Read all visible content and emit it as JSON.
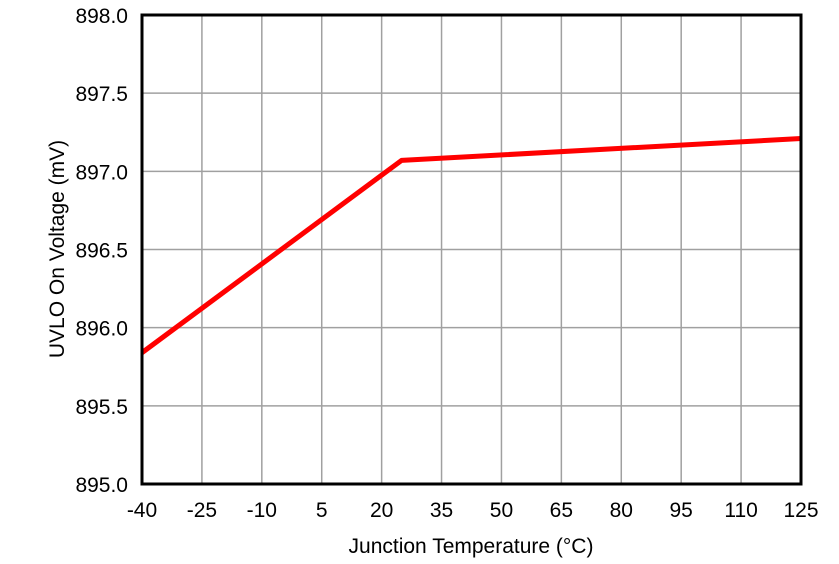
{
  "chart_data": {
    "type": "line",
    "title": "",
    "xlabel": "Junction Temperature (°C)",
    "ylabel": "UVLO On Voltage (mV)",
    "xlim": [
      -40,
      125
    ],
    "ylim": [
      895.0,
      898.0
    ],
    "x_ticks": [
      "-40",
      "-25",
      "-10",
      "5",
      "20",
      "35",
      "50",
      "65",
      "80",
      "95",
      "110",
      "125"
    ],
    "y_ticks": [
      "895.0",
      "895.5",
      "896.0",
      "896.5",
      "897.0",
      "897.5",
      "898.0"
    ],
    "grid": true,
    "legend": null,
    "series": [
      {
        "name": "UVLO On Voltage",
        "color": "#ff0000",
        "x": [
          -40,
          25,
          125
        ],
        "y": [
          895.84,
          897.07,
          897.21
        ]
      }
    ]
  }
}
